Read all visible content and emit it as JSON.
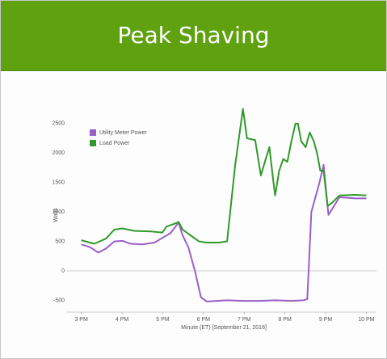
{
  "header": {
    "title": "Peak Shaving"
  },
  "chart_data": {
    "type": "line",
    "ylabel": "Watts",
    "xlabel": "Minute (ET) [September 21, 2016]",
    "xlim": [
      14.65,
      22.25
    ],
    "xticks": [
      {
        "value": 15,
        "label": "3 PM"
      },
      {
        "value": 16,
        "label": "4 PM"
      },
      {
        "value": 17,
        "label": "5 PM"
      },
      {
        "value": 18,
        "label": "6 PM"
      },
      {
        "value": 19,
        "label": "7 PM"
      },
      {
        "value": 20,
        "label": "8 PM"
      },
      {
        "value": 21,
        "label": "9 PM"
      },
      {
        "value": 22,
        "label": "10 PM"
      }
    ],
    "ylim": [
      -700,
      2800
    ],
    "yticks": [
      -500,
      0,
      500,
      1000,
      1500,
      2000,
      2500
    ],
    "zero_line": true,
    "legend": "top-left",
    "series": [
      {
        "name": "Utility Meter Power",
        "color": "#9b5fc8",
        "x": [
          15.0,
          15.22,
          15.42,
          15.61,
          15.81,
          16.01,
          16.21,
          16.5,
          16.8,
          16.99,
          17.19,
          17.39,
          17.49,
          17.63,
          17.79,
          17.94,
          18.08,
          18.58,
          18.97,
          19.37,
          19.76,
          20.16,
          20.45,
          20.55,
          20.65,
          20.85,
          20.95,
          21.07,
          21.34,
          21.74,
          22.0
        ],
        "values": [
          450,
          400,
          310,
          380,
          500,
          510,
          460,
          450,
          480,
          560,
          640,
          820,
          600,
          400,
          0,
          -450,
          -520,
          -500,
          -510,
          -510,
          -500,
          -510,
          -500,
          -480,
          1000,
          1500,
          1800,
          950,
          1250,
          1230,
          1230
        ]
      },
      {
        "name": "Load Power",
        "color": "#2f9a2a",
        "x": [
          15.0,
          15.32,
          15.61,
          15.81,
          16.01,
          16.3,
          16.7,
          16.99,
          17.09,
          17.29,
          17.39,
          17.49,
          17.69,
          17.89,
          18.08,
          18.38,
          18.58,
          18.78,
          18.97,
          19.07,
          19.27,
          19.41,
          19.53,
          19.62,
          19.72,
          19.76,
          19.86,
          19.96,
          20.06,
          20.16,
          20.26,
          20.32,
          20.4,
          20.51,
          20.61,
          20.71,
          20.79,
          20.87,
          20.95,
          21.05,
          21.15,
          21.34,
          21.74,
          22.0
        ],
        "values": [
          520,
          460,
          550,
          700,
          720,
          680,
          670,
          650,
          750,
          800,
          830,
          700,
          600,
          500,
          480,
          480,
          500,
          1800,
          2750,
          2250,
          2220,
          1620,
          1900,
          2100,
          1500,
          1280,
          1700,
          1900,
          1850,
          2200,
          2500,
          2500,
          2200,
          2100,
          2350,
          2200,
          2000,
          1700,
          1700,
          1100,
          1150,
          1280,
          1290,
          1280
        ]
      }
    ]
  }
}
